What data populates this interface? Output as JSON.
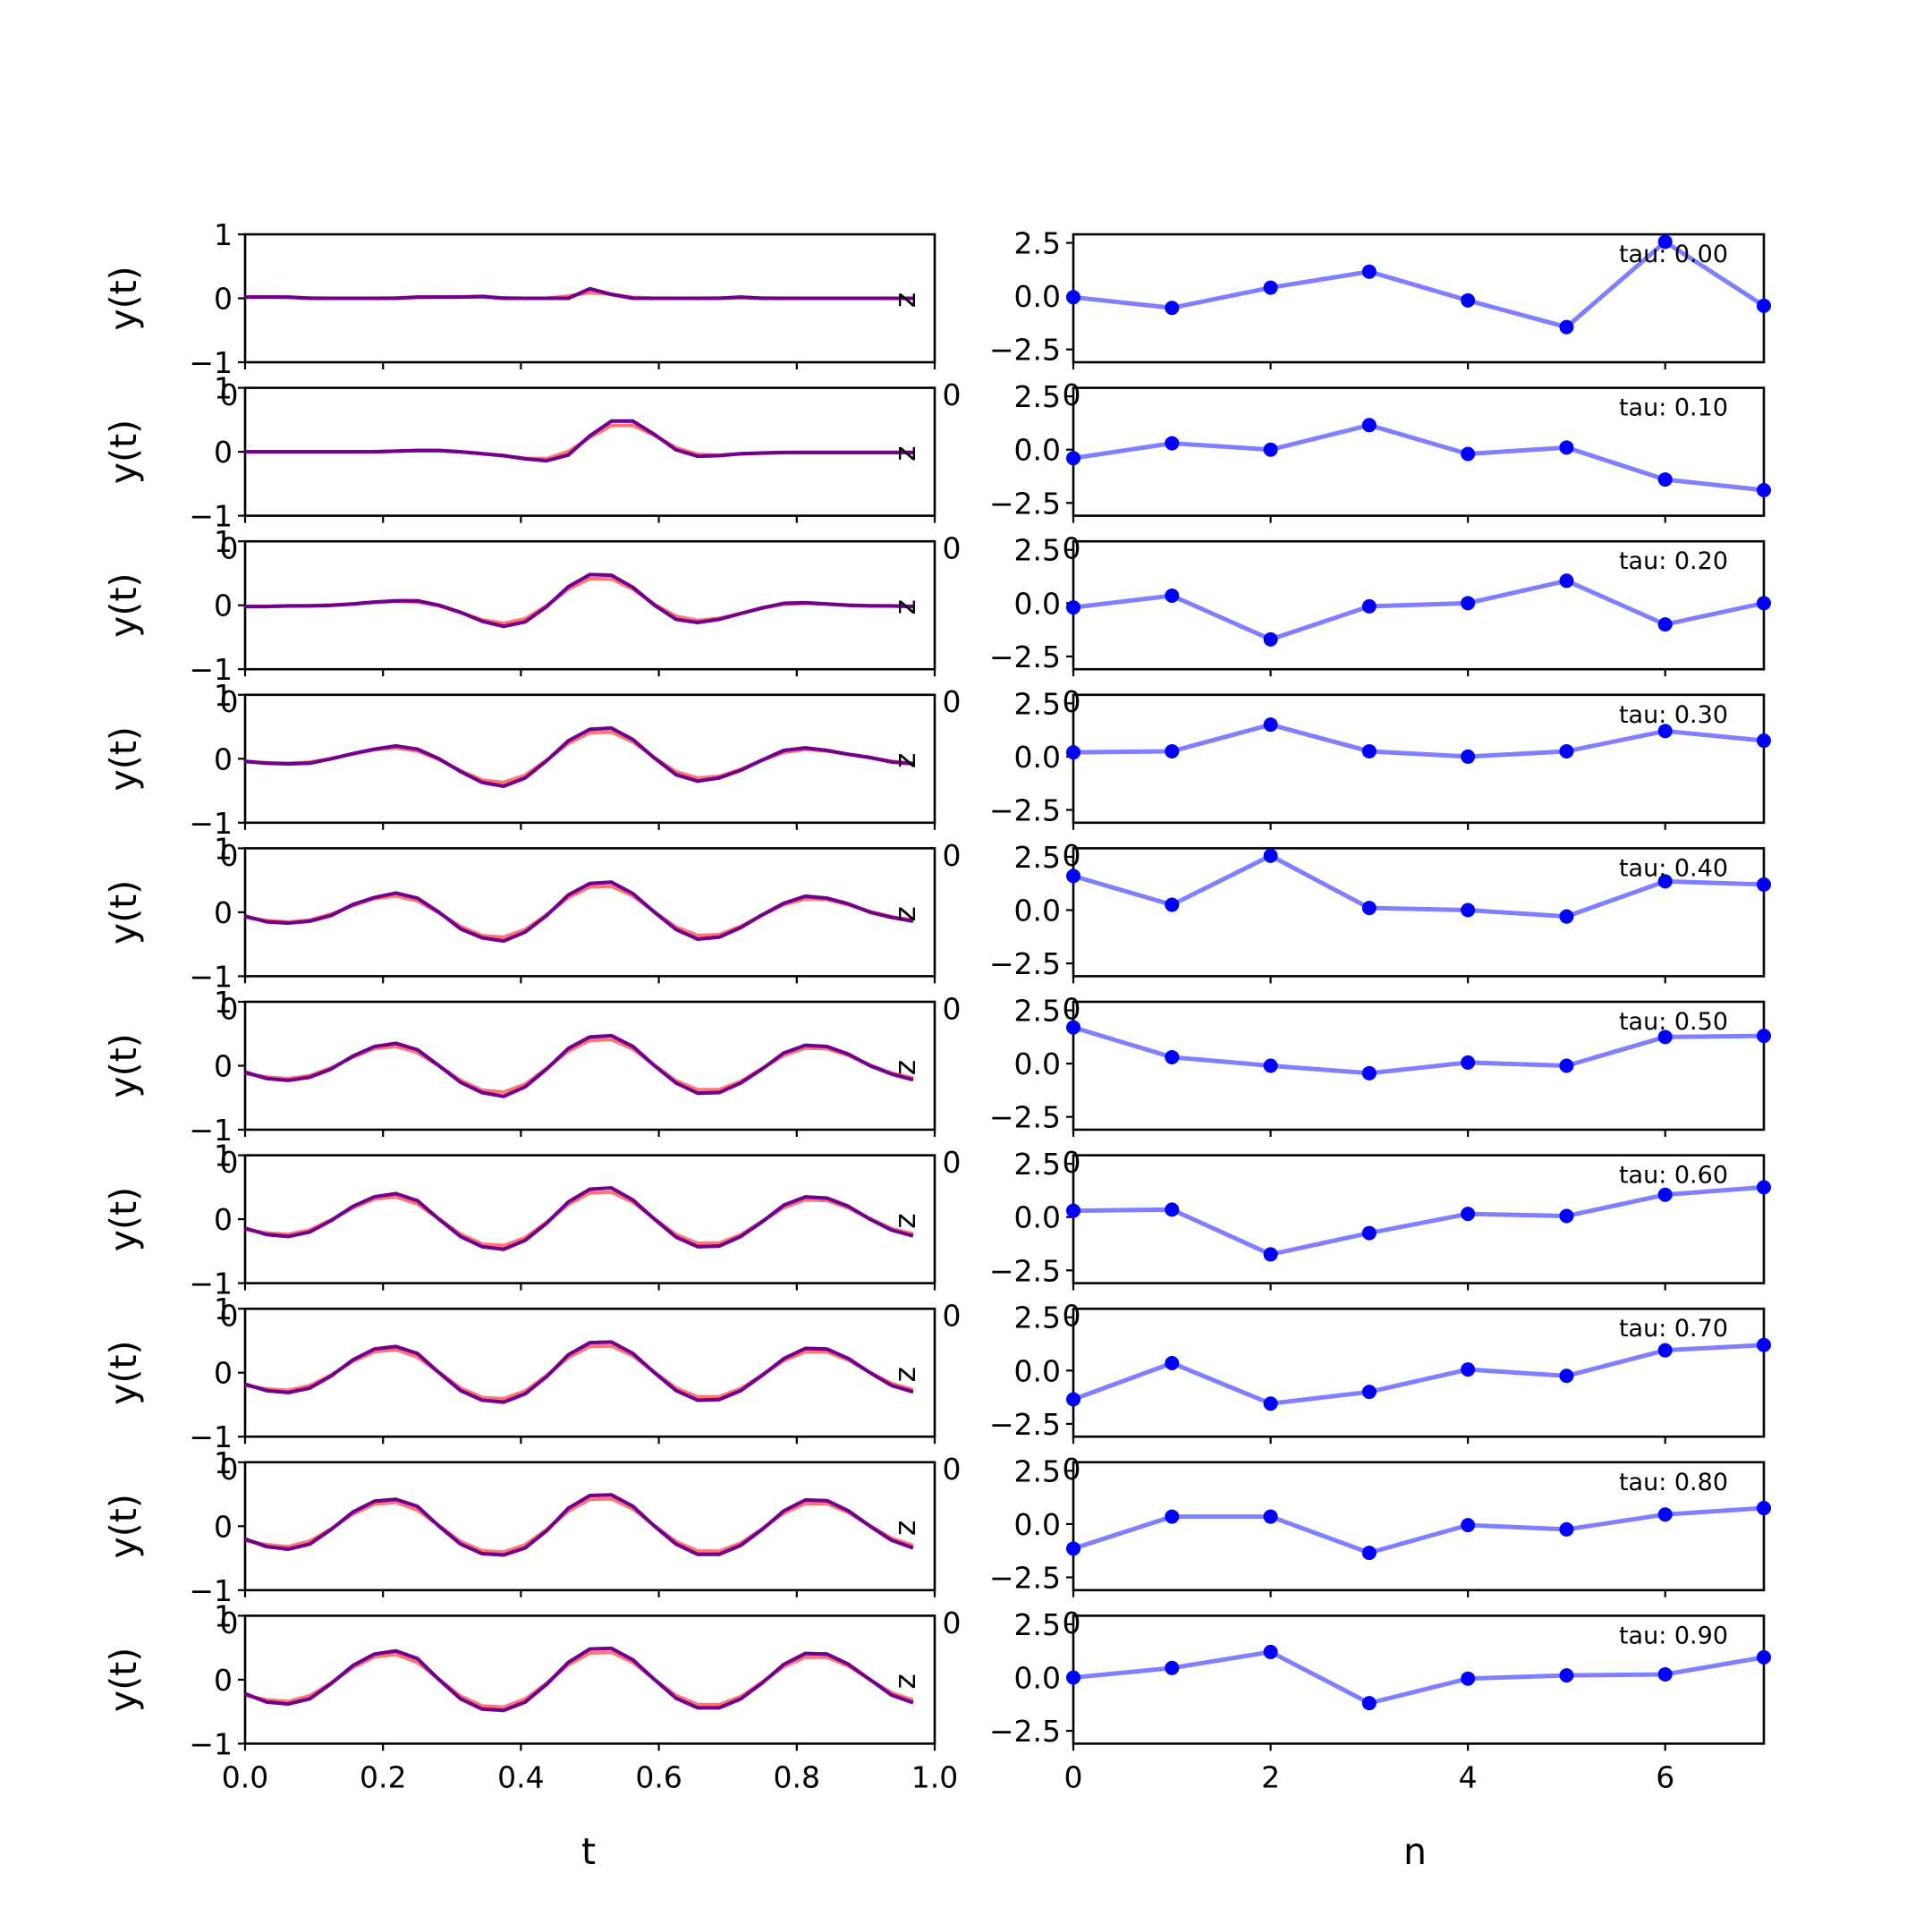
{
  "colors": {
    "reference": "#ff0000",
    "prediction": "#0000ff",
    "coefficients": "#0000ff",
    "background": "#ffffff"
  },
  "left_panel": {
    "xlabel": "t",
    "ylabel": "y(t)",
    "xlim": [
      0,
      1
    ],
    "ylim": [
      -1,
      1
    ],
    "xticks": [
      "0.0",
      "0.2",
      "0.4",
      "0.6",
      "0.8",
      "1.0"
    ],
    "yticks": [
      "-1",
      "0",
      "1"
    ],
    "overflow_label_left": "0",
    "overflow_label_right": "0",
    "overflow_label_mid": "0",
    "stray_tick_label": "z"
  },
  "right_panel": {
    "xlabel": "n",
    "xlim": [
      0,
      7
    ],
    "ylim": [
      -3.1,
      2.9
    ],
    "xticks": [
      "0",
      "2",
      "4",
      "6"
    ],
    "yticks": [
      "2.5",
      "0.0",
      "−2.5"
    ]
  },
  "chart_data": [
    {
      "type": "line",
      "xlabel": "t",
      "ylabel": "y(t)",
      "ylim": [
        -1,
        1
      ],
      "xlim": [
        0,
        1
      ],
      "series": [
        {
          "tau": "0.00",
          "values": [
            0.02,
            0.02,
            0.02,
            0.0,
            0.0,
            0.0,
            0.0,
            0.0,
            0.02,
            0.02,
            0.02,
            0.03,
            0.0,
            0.0,
            0.0,
            0.0,
            0.15,
            0.06,
            0.0,
            0.0,
            0.0,
            0.0,
            0.0,
            0.02,
            0.0,
            0.0,
            0.0,
            0.0,
            0.0,
            0.0,
            0.0,
            0.0
          ]
        },
        {
          "tau": "0.10",
          "values": [
            0.0,
            0.0,
            0.0,
            0.0,
            0.0,
            0.0,
            0.0,
            0.01,
            0.02,
            0.02,
            0.0,
            -0.03,
            -0.06,
            -0.11,
            -0.14,
            -0.05,
            0.25,
            0.48,
            0.48,
            0.27,
            0.03,
            -0.07,
            -0.06,
            -0.03,
            -0.02,
            -0.01,
            -0.01,
            -0.01,
            -0.01,
            -0.01,
            -0.01,
            -0.01
          ]
        },
        {
          "tau": "0.20",
          "values": [
            -0.02,
            -0.02,
            -0.01,
            -0.01,
            0.0,
            0.02,
            0.05,
            0.07,
            0.07,
            0.0,
            -0.11,
            -0.25,
            -0.33,
            -0.26,
            -0.02,
            0.29,
            0.48,
            0.47,
            0.28,
            0.0,
            -0.22,
            -0.27,
            -0.22,
            -0.13,
            -0.04,
            0.03,
            0.04,
            0.02,
            0.0,
            -0.01,
            -0.01,
            -0.02
          ]
        },
        {
          "tau": "0.30",
          "values": [
            -0.04,
            -0.07,
            -0.08,
            -0.07,
            0.0,
            0.08,
            0.15,
            0.2,
            0.15,
            0.0,
            -0.2,
            -0.37,
            -0.43,
            -0.3,
            -0.03,
            0.28,
            0.46,
            0.48,
            0.3,
            0.01,
            -0.25,
            -0.35,
            -0.3,
            -0.18,
            -0.02,
            0.13,
            0.17,
            0.13,
            0.07,
            0.02,
            -0.05,
            -0.08
          ]
        },
        {
          "tau": "0.40",
          "values": [
            -0.06,
            -0.15,
            -0.17,
            -0.14,
            -0.05,
            0.12,
            0.23,
            0.3,
            0.22,
            0.0,
            -0.26,
            -0.4,
            -0.45,
            -0.31,
            -0.05,
            0.27,
            0.45,
            0.47,
            0.29,
            0.0,
            -0.27,
            -0.42,
            -0.39,
            -0.24,
            -0.04,
            0.14,
            0.25,
            0.22,
            0.13,
            0.0,
            -0.08,
            -0.14
          ]
        },
        {
          "tau": "0.50",
          "values": [
            -0.1,
            -0.2,
            -0.23,
            -0.18,
            -0.05,
            0.15,
            0.3,
            0.35,
            0.25,
            0.0,
            -0.26,
            -0.42,
            -0.48,
            -0.33,
            -0.05,
            0.27,
            0.45,
            0.47,
            0.3,
            0.0,
            -0.27,
            -0.43,
            -0.42,
            -0.27,
            -0.05,
            0.2,
            0.32,
            0.3,
            0.18,
            0.0,
            -0.13,
            -0.22
          ]
        },
        {
          "tau": "0.60",
          "values": [
            -0.14,
            -0.24,
            -0.27,
            -0.2,
            -0.02,
            0.2,
            0.35,
            0.4,
            0.29,
            0.0,
            -0.27,
            -0.43,
            -0.47,
            -0.33,
            -0.06,
            0.27,
            0.47,
            0.49,
            0.3,
            0.0,
            -0.28,
            -0.43,
            -0.42,
            -0.27,
            -0.04,
            0.22,
            0.35,
            0.33,
            0.2,
            0.0,
            -0.17,
            -0.26
          ]
        },
        {
          "tau": "0.70",
          "values": [
            -0.18,
            -0.28,
            -0.31,
            -0.24,
            -0.05,
            0.2,
            0.37,
            0.41,
            0.3,
            0.0,
            -0.28,
            -0.43,
            -0.46,
            -0.33,
            -0.06,
            0.28,
            0.47,
            0.48,
            0.3,
            0.0,
            -0.28,
            -0.43,
            -0.42,
            -0.28,
            -0.04,
            0.22,
            0.38,
            0.37,
            0.22,
            0.0,
            -0.2,
            -0.3
          ]
        },
        {
          "tau": "0.80",
          "values": [
            -0.2,
            -0.32,
            -0.36,
            -0.28,
            -0.05,
            0.22,
            0.39,
            0.42,
            0.31,
            0.0,
            -0.28,
            -0.43,
            -0.45,
            -0.34,
            -0.07,
            0.28,
            0.48,
            0.49,
            0.31,
            0.0,
            -0.28,
            -0.44,
            -0.44,
            -0.3,
            -0.05,
            0.24,
            0.41,
            0.4,
            0.24,
            0.0,
            -0.22,
            -0.34
          ]
        },
        {
          "tau": "0.90",
          "values": [
            -0.22,
            -0.35,
            -0.38,
            -0.3,
            -0.06,
            0.22,
            0.4,
            0.45,
            0.33,
            0.0,
            -0.3,
            -0.46,
            -0.48,
            -0.35,
            -0.07,
            0.27,
            0.48,
            0.49,
            0.31,
            0.0,
            -0.29,
            -0.44,
            -0.44,
            -0.3,
            -0.05,
            0.24,
            0.41,
            0.4,
            0.24,
            0.0,
            -0.24,
            -0.36
          ]
        }
      ]
    },
    {
      "type": "line",
      "xlabel": "n",
      "ylim": [
        -3.1,
        2.9
      ],
      "xlim": [
        0,
        7
      ],
      "series": [
        {
          "tau": "0.00",
          "values": [
            -0.05,
            -0.55,
            0.4,
            1.15,
            -0.2,
            -1.45,
            2.55,
            -0.45
          ]
        },
        {
          "tau": "0.10",
          "values": [
            -0.4,
            0.3,
            0.0,
            1.15,
            -0.2,
            0.1,
            -1.4,
            -1.9
          ]
        },
        {
          "tau": "0.20",
          "values": [
            -0.2,
            0.35,
            -1.7,
            -0.15,
            0.0,
            1.05,
            -1.0,
            0.0
          ]
        },
        {
          "tau": "0.30",
          "values": [
            0.2,
            0.25,
            1.5,
            0.25,
            0.0,
            0.25,
            1.2,
            0.75
          ]
        },
        {
          "tau": "0.40",
          "values": [
            1.6,
            0.25,
            2.55,
            0.1,
            0.0,
            -0.3,
            1.35,
            1.2
          ]
        },
        {
          "tau": "0.50",
          "values": [
            1.7,
            0.3,
            -0.1,
            -0.45,
            0.05,
            -0.1,
            1.25,
            1.3
          ]
        },
        {
          "tau": "0.60",
          "values": [
            0.3,
            0.35,
            -1.75,
            -0.75,
            0.15,
            0.05,
            1.05,
            1.4
          ]
        },
        {
          "tau": "0.70",
          "values": [
            -1.35,
            0.35,
            -1.55,
            -1.0,
            0.05,
            -0.25,
            0.95,
            1.2
          ]
        },
        {
          "tau": "0.80",
          "values": [
            -1.15,
            0.35,
            0.35,
            -1.35,
            -0.05,
            -0.25,
            0.45,
            0.75
          ]
        },
        {
          "tau": "0.90",
          "values": [
            0.0,
            0.45,
            1.2,
            -1.2,
            -0.05,
            0.1,
            0.15,
            0.95
          ]
        }
      ]
    }
  ]
}
